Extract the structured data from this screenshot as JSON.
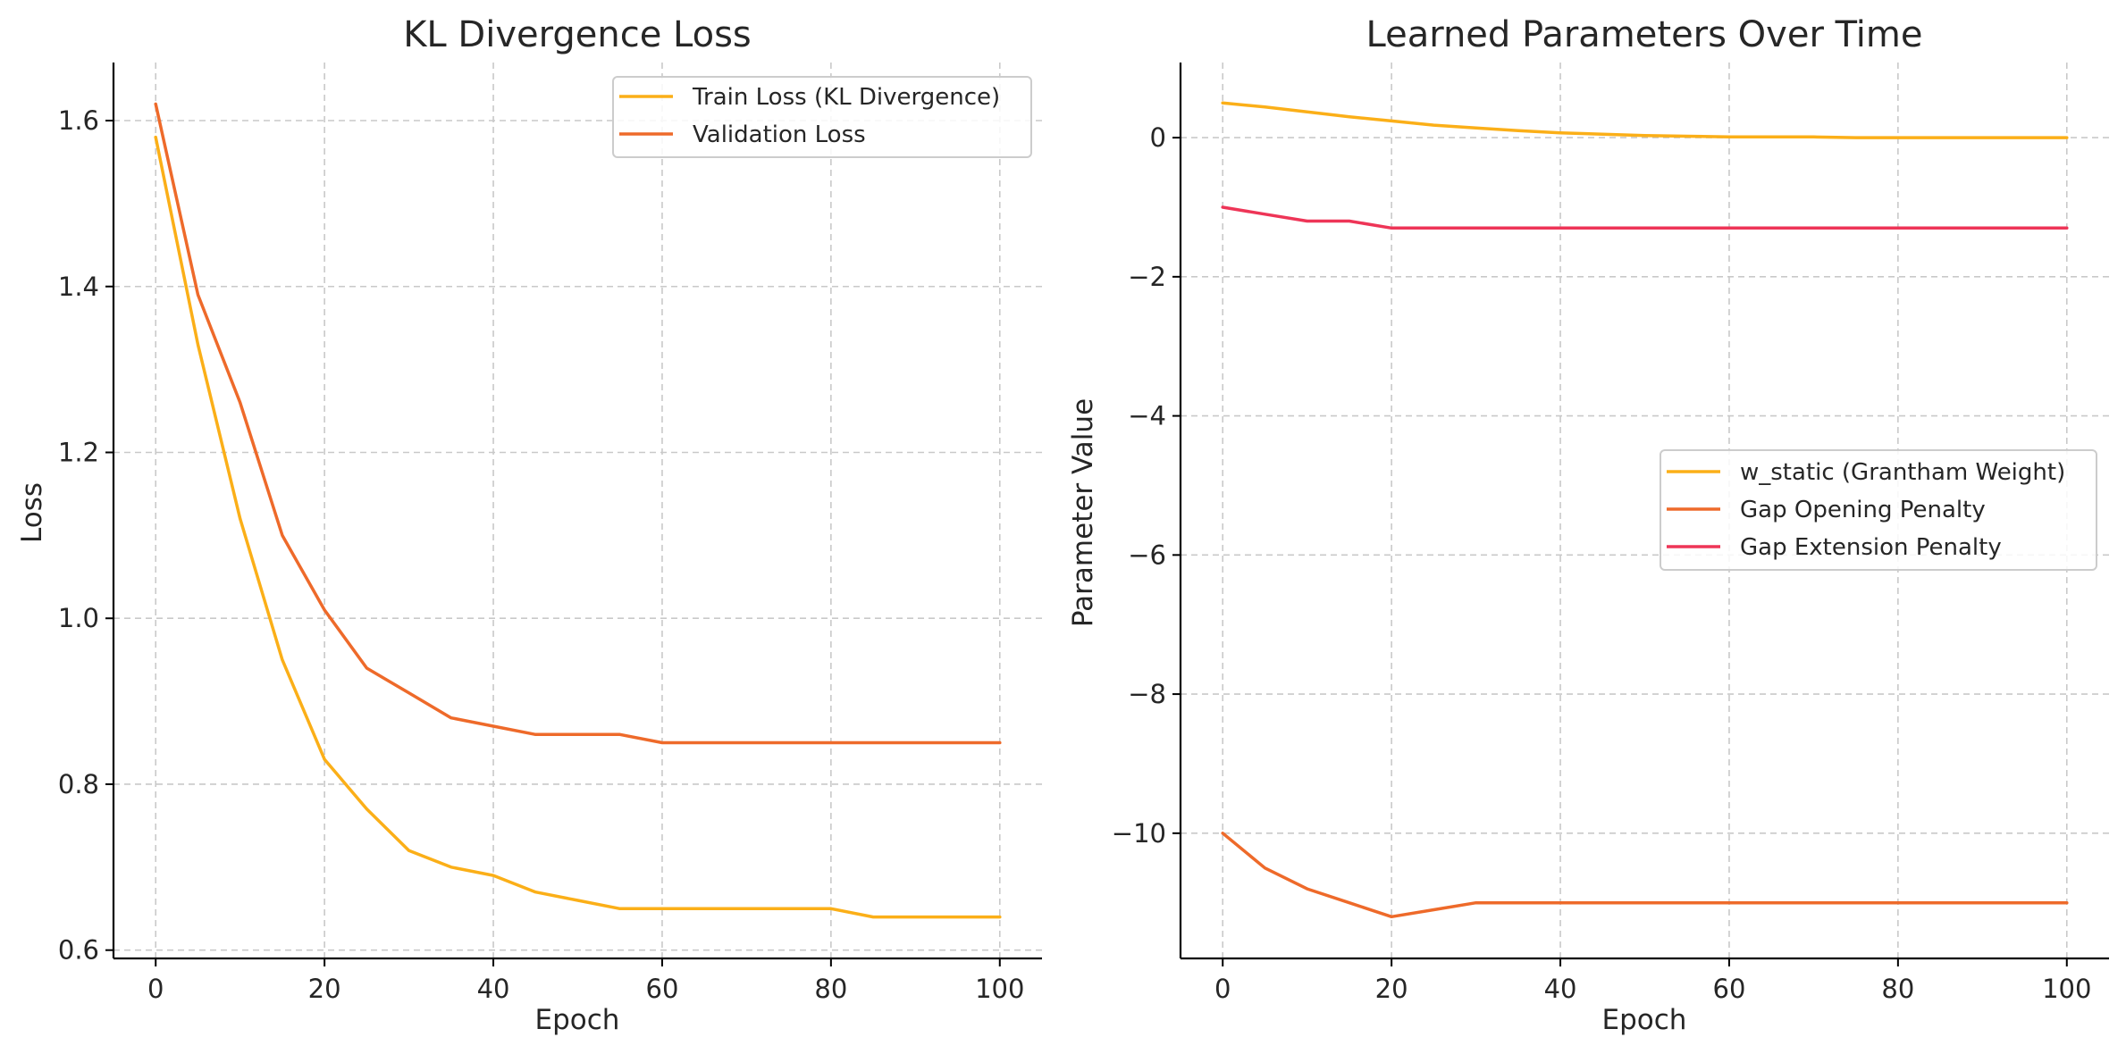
{
  "colors": {
    "train_loss": "#FBAF18",
    "validation_loss": "#EE6A2A",
    "w_static": "#FBAF18",
    "gap_opening": "#EE6A2A",
    "gap_extension": "#EE3557"
  },
  "chart_data": [
    {
      "type": "line",
      "title": "KL Divergence Loss",
      "xlabel": "Epoch",
      "ylabel": "Loss",
      "xlim": [
        -5,
        105
      ],
      "ylim": [
        0.59,
        1.67
      ],
      "xticks": [
        0,
        20,
        40,
        60,
        80,
        100
      ],
      "yticks": [
        0.6,
        0.8,
        1.0,
        1.2,
        1.4,
        1.6
      ],
      "ytick_labels": [
        "0.6",
        "0.8",
        "1.0",
        "1.2",
        "1.4",
        "1.6"
      ],
      "grid": true,
      "legend": "top-right",
      "x": [
        0,
        5,
        10,
        15,
        20,
        25,
        30,
        35,
        40,
        45,
        50,
        55,
        60,
        65,
        70,
        75,
        80,
        85,
        90,
        95,
        100
      ],
      "series": [
        {
          "name": "Train Loss (KL Divergence)",
          "color_key": "train_loss",
          "values": [
            1.58,
            1.33,
            1.12,
            0.95,
            0.83,
            0.77,
            0.72,
            0.7,
            0.69,
            0.67,
            0.66,
            0.65,
            0.65,
            0.65,
            0.65,
            0.65,
            0.65,
            0.64,
            0.64,
            0.64,
            0.64
          ]
        },
        {
          "name": "Validation Loss",
          "color_key": "validation_loss",
          "values": [
            1.62,
            1.39,
            1.26,
            1.1,
            1.01,
            0.94,
            0.91,
            0.88,
            0.87,
            0.86,
            0.86,
            0.86,
            0.85,
            0.85,
            0.85,
            0.85,
            0.85,
            0.85,
            0.85,
            0.85,
            0.85
          ]
        }
      ]
    },
    {
      "type": "line",
      "title": "Learned Parameters Over Time",
      "xlabel": "Epoch",
      "ylabel": "Parameter Value",
      "xlim": [
        -5,
        105
      ],
      "ylim": [
        -11.8,
        1.08
      ],
      "xticks": [
        0,
        20,
        40,
        60,
        80,
        100
      ],
      "yticks": [
        0,
        -2,
        -4,
        -6,
        -8,
        -10
      ],
      "ytick_labels": [
        "0",
        "−2",
        "−4",
        "−6",
        "−8",
        "−10"
      ],
      "grid": true,
      "legend": "center-right",
      "x": [
        0,
        5,
        10,
        15,
        20,
        25,
        30,
        35,
        40,
        45,
        50,
        55,
        60,
        65,
        70,
        75,
        80,
        85,
        90,
        95,
        100
      ],
      "series": [
        {
          "name": "w_static (Grantham Weight)",
          "color_key": "w_static",
          "values": [
            0.5,
            0.44,
            0.37,
            0.3,
            0.24,
            0.18,
            0.14,
            0.1,
            0.07,
            0.05,
            0.03,
            0.02,
            0.01,
            0.01,
            0.01,
            0.0,
            0.0,
            0.0,
            0.0,
            0.0,
            0.0
          ]
        },
        {
          "name": "Gap Opening Penalty",
          "color_key": "gap_opening",
          "values": [
            -10.0,
            -10.5,
            -10.8,
            -11.0,
            -11.2,
            -11.1,
            -11.0,
            -11.0,
            -11.0,
            -11.0,
            -11.0,
            -11.0,
            -11.0,
            -11.0,
            -11.0,
            -11.0,
            -11.0,
            -11.0,
            -11.0,
            -11.0,
            -11.0
          ]
        },
        {
          "name": "Gap Extension Penalty",
          "color_key": "gap_extension",
          "values": [
            -1.0,
            -1.1,
            -1.2,
            -1.2,
            -1.3,
            -1.3,
            -1.3,
            -1.3,
            -1.3,
            -1.3,
            -1.3,
            -1.3,
            -1.3,
            -1.3,
            -1.3,
            -1.3,
            -1.3,
            -1.3,
            -1.3,
            -1.3,
            -1.3
          ]
        }
      ]
    }
  ]
}
